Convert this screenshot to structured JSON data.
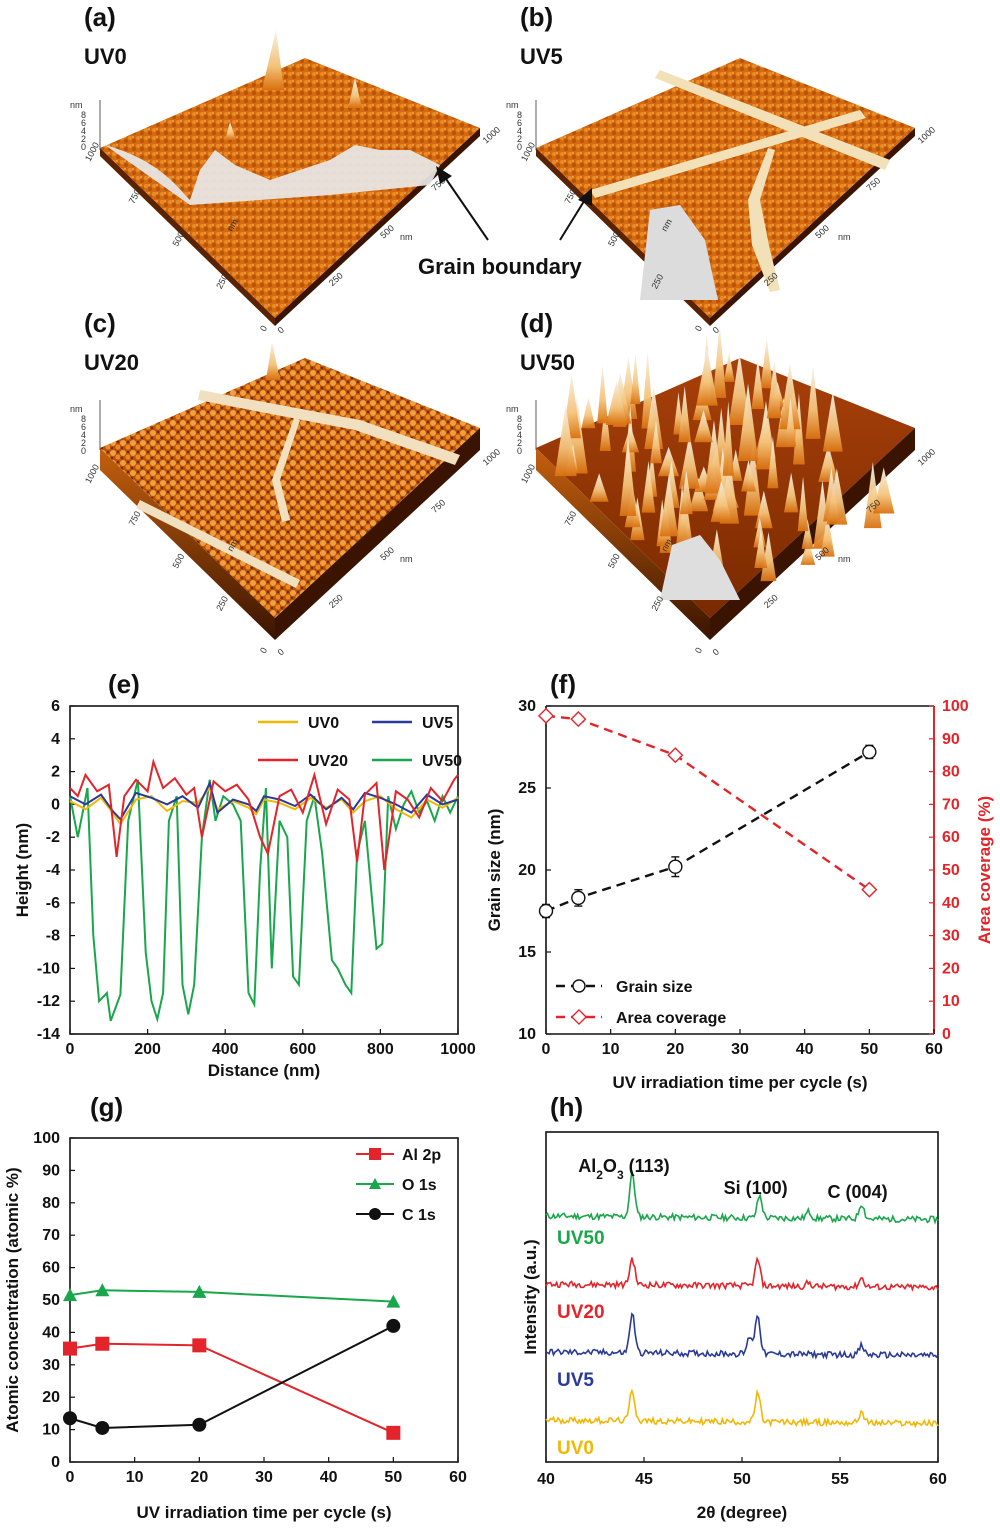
{
  "panels": {
    "a": {
      "letter": "(a)",
      "label": "UV0"
    },
    "b": {
      "letter": "(b)",
      "label": "UV5"
    },
    "c": {
      "letter": "(c)",
      "label": "UV20"
    },
    "d": {
      "letter": "(d)",
      "label": "UV50"
    },
    "e": {
      "letter": "(e)"
    },
    "f": {
      "letter": "(f)"
    },
    "g": {
      "letter": "(g)"
    },
    "h": {
      "letter": "(h)"
    }
  },
  "afm": {
    "annotation": "Grain boundary",
    "z_unit": "nm",
    "z_ticks": [
      "8",
      "6",
      "4",
      "2",
      "0"
    ],
    "axis_unit": "nm",
    "axis_ticks": [
      "0",
      "250",
      "500",
      "750",
      "1000"
    ]
  },
  "colors": {
    "uv0": "#f2b705",
    "uv5": "#2a3a9a",
    "uv20": "#e3242b",
    "uv50": "#1aa64b",
    "black": "#111111",
    "afm_dark": "#7a2a00",
    "afm_mid": "#d9700e",
    "afm_light": "#f4c37a",
    "afm_peak": "#e8e8e8"
  },
  "chart_data": [
    {
      "id": "e",
      "type": "line",
      "title": "",
      "xlabel": "Distance (nm)",
      "ylabel": "Height (nm)",
      "xlim": [
        0,
        1000
      ],
      "ylim": [
        -14,
        6
      ],
      "xticks": [
        0,
        200,
        400,
        600,
        800,
        1000
      ],
      "yticks": [
        -14,
        -12,
        -10,
        -8,
        -6,
        -4,
        -2,
        0,
        2,
        4,
        6
      ],
      "legend": "top-right",
      "series": [
        {
          "name": "UV0",
          "color": "#f2b705",
          "x": [
            0,
            40,
            80,
            110,
            130,
            170,
            210,
            250,
            290,
            330,
            360,
            380,
            420,
            460,
            480,
            500,
            540,
            580,
            620,
            660,
            700,
            730,
            760,
            800,
            840,
            880,
            920,
            960,
            1000
          ],
          "y": [
            0.2,
            -0.3,
            0.4,
            -0.5,
            -1.2,
            0.3,
            0.5,
            -0.4,
            0.2,
            0.1,
            1.0,
            -0.3,
            0.2,
            -0.2,
            -0.6,
            0.3,
            0.1,
            -0.3,
            0.4,
            -0.2,
            0.3,
            -0.5,
            0.2,
            0.5,
            -0.3,
            -0.8,
            0.3,
            -0.2,
            0.4
          ]
        },
        {
          "name": "UV5",
          "color": "#2a3a9a",
          "x": [
            0,
            40,
            80,
            110,
            130,
            170,
            210,
            250,
            290,
            330,
            360,
            380,
            420,
            460,
            480,
            500,
            540,
            580,
            620,
            660,
            700,
            730,
            760,
            800,
            840,
            880,
            920,
            960,
            1000
          ],
          "y": [
            0.5,
            0.0,
            0.6,
            -0.4,
            -0.9,
            0.7,
            0.4,
            0.0,
            0.5,
            -0.2,
            1.3,
            -0.5,
            0.3,
            0.0,
            -0.4,
            0.5,
            0.3,
            -0.1,
            0.6,
            -0.3,
            0.4,
            -0.3,
            0.7,
            0.4,
            0.0,
            -0.5,
            0.6,
            0.0,
            0.3
          ]
        },
        {
          "name": "UV20",
          "color": "#e3242b",
          "x": [
            0,
            20,
            40,
            70,
            100,
            120,
            140,
            170,
            200,
            215,
            240,
            270,
            300,
            320,
            340,
            370,
            400,
            430,
            460,
            490,
            510,
            540,
            570,
            600,
            630,
            660,
            690,
            720,
            740,
            760,
            790,
            810,
            840,
            870,
            900,
            930,
            960,
            990,
            1000
          ],
          "y": [
            1.0,
            0.5,
            1.8,
            0.8,
            1.2,
            -3.2,
            0.5,
            1.5,
            0.8,
            2.6,
            1.0,
            1.6,
            0.6,
            1.0,
            -2.0,
            1.4,
            0.8,
            1.2,
            0.3,
            -2.0,
            -3.0,
            0.5,
            0.9,
            -0.5,
            1.8,
            -1.2,
            0.9,
            0.3,
            -3.5,
            0.6,
            1.3,
            -4.0,
            0.8,
            0.3,
            -0.8,
            1.0,
            0.2,
            1.5,
            1.8
          ]
        },
        {
          "name": "UV50",
          "color": "#1aa64b",
          "x": [
            0,
            20,
            45,
            60,
            75,
            95,
            105,
            130,
            150,
            175,
            195,
            210,
            225,
            240,
            255,
            275,
            290,
            305,
            320,
            340,
            360,
            375,
            395,
            420,
            440,
            460,
            475,
            490,
            505,
            520,
            540,
            560,
            575,
            590,
            610,
            630,
            650,
            675,
            690,
            710,
            725,
            740,
            760,
            790,
            805,
            820,
            840,
            860,
            880,
            900,
            920,
            940,
            960,
            980,
            1000
          ],
          "y": [
            0.5,
            -2.0,
            1.0,
            -8.0,
            -12.0,
            -11.5,
            -13.2,
            -11.6,
            -1.0,
            1.5,
            -9.0,
            -12.0,
            -13.1,
            -11.5,
            -1.0,
            0.5,
            -11.0,
            -12.8,
            -11.0,
            -2.0,
            1.5,
            -1.0,
            0.5,
            0.0,
            -1.0,
            -11.5,
            -12.2,
            -4.0,
            1.0,
            -10.0,
            -1.0,
            -2.0,
            -10.5,
            -11.0,
            -1.0,
            0.5,
            -3.0,
            -9.5,
            -10.0,
            -11.0,
            -11.5,
            -3.0,
            -1.0,
            -8.8,
            -8.5,
            0.5,
            -1.5,
            0.0,
            0.8,
            -0.5,
            0.2,
            -1.0,
            0.5,
            -0.5,
            0.5
          ]
        }
      ]
    },
    {
      "id": "f",
      "type": "line",
      "title": "",
      "xlabel": "UV irradiation time per cycle (s)",
      "ylabel": "Grain size (nm)",
      "ylabel_right": "Area coverage (%)",
      "xlim": [
        0,
        60
      ],
      "ylim": [
        10,
        30
      ],
      "ylim_right": [
        0,
        100
      ],
      "xticks": [
        0,
        10,
        20,
        30,
        40,
        50,
        60
      ],
      "yticks": [
        10,
        15,
        20,
        25,
        30
      ],
      "yticks_right": [
        0,
        10,
        20,
        30,
        40,
        50,
        60,
        70,
        80,
        90,
        100
      ],
      "legend": "bottom-left",
      "categories": [
        0,
        5,
        20,
        50
      ],
      "series": [
        {
          "name": "Grain size",
          "color": "#111111",
          "axis": "left",
          "values": [
            17.5,
            18.3,
            20.2,
            27.2
          ],
          "errors": [
            0.4,
            0.5,
            0.6,
            0.4
          ]
        },
        {
          "name": "Area coverage",
          "color": "#e3242b",
          "axis": "right",
          "values": [
            97,
            96,
            85,
            44
          ]
        }
      ]
    },
    {
      "id": "g",
      "type": "line",
      "title": "",
      "xlabel": "UV irradiation time per cycle (s)",
      "ylabel": "Atomic concentration (atomic %)",
      "xlim": [
        0,
        60
      ],
      "ylim": [
        0,
        100
      ],
      "xticks": [
        0,
        10,
        20,
        30,
        40,
        50,
        60
      ],
      "yticks": [
        0,
        10,
        20,
        30,
        40,
        50,
        60,
        70,
        80,
        90,
        100
      ],
      "legend": "top-right",
      "categories": [
        0,
        5,
        20,
        50
      ],
      "series": [
        {
          "name": "Al 2p",
          "color": "#e3242b",
          "marker": "square",
          "values": [
            35,
            36.5,
            36,
            9
          ]
        },
        {
          "name": "O 1s",
          "color": "#1aa64b",
          "marker": "triangle",
          "values": [
            51.5,
            53,
            52.5,
            49.5
          ]
        },
        {
          "name": "C 1s",
          "color": "#111111",
          "marker": "circle",
          "values": [
            13.5,
            10.5,
            11.5,
            42
          ]
        }
      ]
    },
    {
      "id": "h",
      "type": "line",
      "title": "",
      "xlabel": "2θ (degree)",
      "ylabel": "Intensity (a.u.)",
      "xlim": [
        40,
        60
      ],
      "xticks": [
        40,
        45,
        50,
        55,
        60
      ],
      "annotations": [
        {
          "text": "Al",
          "sub": "2",
          "text2": "O",
          "sub2": "3",
          "text3": " (113)",
          "x": 44.4
        },
        {
          "text": "Si (100)",
          "x": 50.9
        },
        {
          "text": "C (004)",
          "x": 56.1
        }
      ],
      "series": [
        {
          "name": "UV50",
          "color": "#1aa64b",
          "offset": 3,
          "peaks": [
            [
              44.4,
              1.0
            ],
            [
              50.9,
              0.5
            ],
            [
              53.4,
              0.15
            ],
            [
              56.1,
              0.35
            ]
          ]
        },
        {
          "name": "UV20",
          "color": "#e3242b",
          "offset": 2,
          "peaks": [
            [
              44.4,
              0.6
            ],
            [
              50.8,
              0.6
            ],
            [
              53.4,
              0.08
            ],
            [
              56.1,
              0.2
            ]
          ]
        },
        {
          "name": "UV5",
          "color": "#2a3a9a",
          "offset": 1,
          "peaks": [
            [
              44.4,
              0.9
            ],
            [
              50.4,
              0.4
            ],
            [
              50.8,
              0.9
            ],
            [
              56.1,
              0.2
            ]
          ]
        },
        {
          "name": "UV0",
          "color": "#f2b705",
          "offset": 0,
          "peaks": [
            [
              44.4,
              0.7
            ],
            [
              50.8,
              0.65
            ],
            [
              56.1,
              0.25
            ]
          ]
        }
      ]
    }
  ]
}
